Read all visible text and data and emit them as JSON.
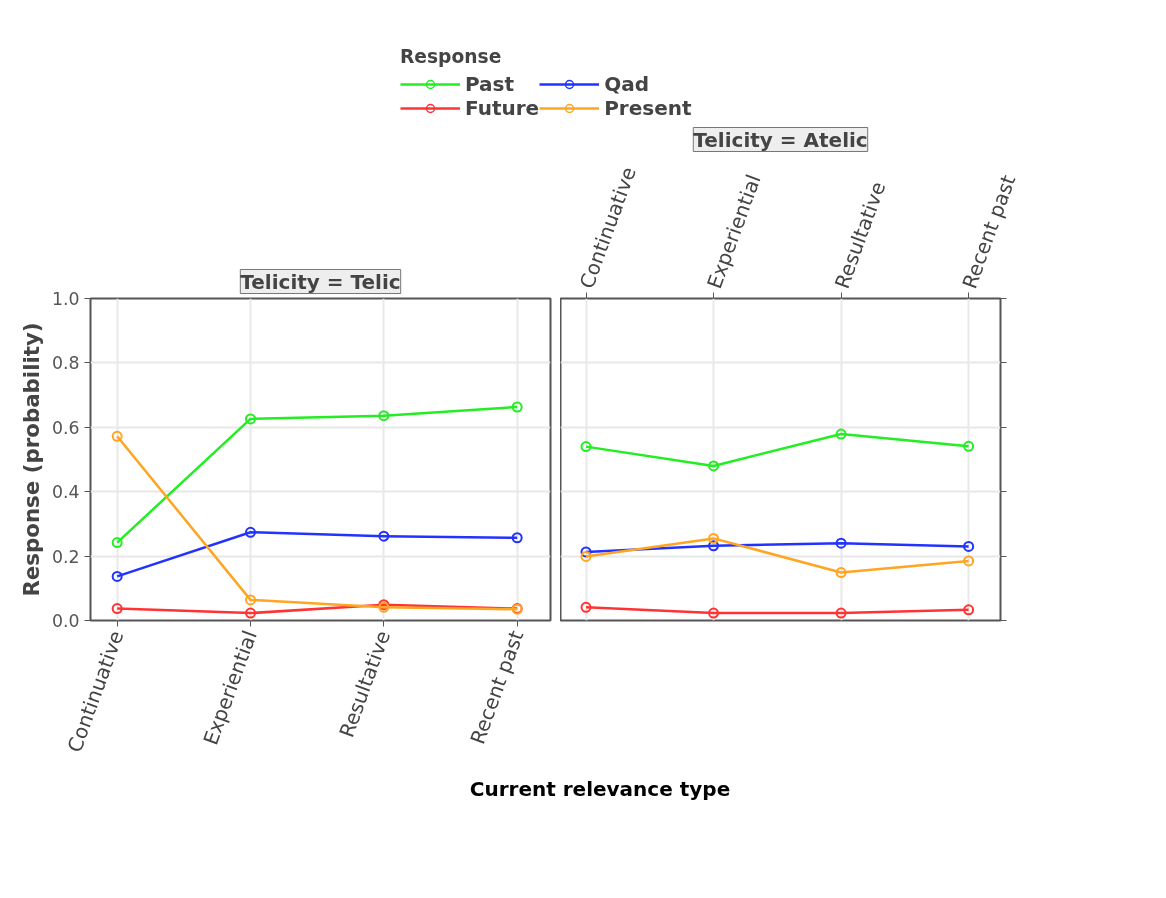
{
  "chart_data": [
    {
      "type": "line",
      "title": "Telicity = Telic",
      "legend_title": "Response",
      "xlabel": "Current relevance type",
      "ylabel": "Response (probability)",
      "categories": [
        "Continuative",
        "Experiential",
        "Resultative",
        "Recent past"
      ],
      "ylim": [
        0,
        1.0
      ],
      "yticks": [
        {
          "value": 0,
          "label": "0.0"
        },
        {
          "value": 0.2,
          "label": "0.2"
        },
        {
          "value": 0.4,
          "label": "0.4"
        },
        {
          "value": 0.6,
          "label": "0.6"
        },
        {
          "value": 0.8,
          "label": "0.8"
        },
        {
          "value": 1.0,
          "label": "1.0"
        }
      ],
      "grid": true,
      "legend": "top",
      "marker": "circle",
      "line_style": "solid",
      "series": [
        {
          "name": "Past",
          "color": "#22ee22",
          "values": [
            0.242,
            0.626,
            0.636,
            0.663
          ]
        },
        {
          "name": "Future",
          "color": "#ff3333",
          "values": [
            0.037,
            0.023,
            0.049,
            0.037
          ]
        },
        {
          "name": "Qad",
          "color": "#2233ff",
          "values": [
            0.137,
            0.274,
            0.262,
            0.257
          ]
        },
        {
          "name": "Present",
          "color": "#ffa522",
          "values": [
            0.572,
            0.064,
            0.041,
            0.035
          ]
        }
      ]
    },
    {
      "type": "line",
      "title": "Telicity = Atelic",
      "categories": [
        "Continuative",
        "Experiential",
        "Resultative",
        "Recent past"
      ],
      "ylim": [
        0,
        1.0
      ],
      "yticks": [
        {
          "value": 0,
          "label": null
        },
        {
          "value": 0.2,
          "label": null
        },
        {
          "value": 0.4,
          "label": null
        },
        {
          "value": 0.6,
          "label": null
        },
        {
          "value": 0.8,
          "label": null
        },
        {
          "value": 1.0,
          "label": null
        }
      ],
      "grid": true,
      "tick_labels": "x",
      "marker": "circle",
      "line_style": "solid",
      "series": [
        {
          "color": "#22ee22",
          "values": [
            0.54,
            0.48,
            0.579,
            0.541
          ]
        },
        {
          "color": "#ff3333",
          "values": [
            0.041,
            0.023,
            0.023,
            0.033
          ]
        },
        {
          "color": "#2233ff",
          "values": [
            0.213,
            0.232,
            0.24,
            0.23
          ]
        },
        {
          "color": "#ffa522",
          "values": [
            0.199,
            0.255,
            0.149,
            0.185
          ]
        }
      ]
    }
  ]
}
